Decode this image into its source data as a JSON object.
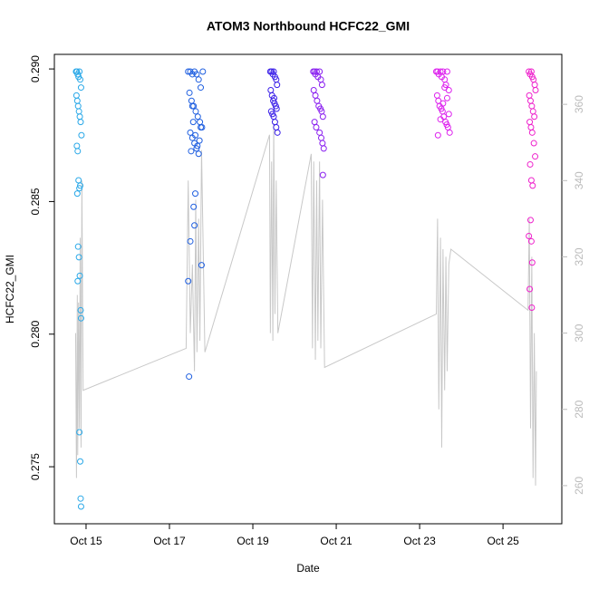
{
  "chart_data": {
    "type": "scatter",
    "title": "ATOM3 Northbound HCFC22_GMI",
    "xlabel": "Date",
    "ylabel": "HCFC22_GMI",
    "xlim": [
      14.24,
      26.41
    ],
    "xticks": [
      {
        "value": 15,
        "label": "Oct 15"
      },
      {
        "value": 17,
        "label": "Oct 17"
      },
      {
        "value": 19,
        "label": "Oct 19"
      },
      {
        "value": 21,
        "label": "Oct 21"
      },
      {
        "value": 23,
        "label": "Oct 23"
      },
      {
        "value": 25,
        "label": "Oct 25"
      }
    ],
    "ylim": [
      0.27285,
      0.29055
    ],
    "yticks": [
      0.275,
      {
        "value": 0.28,
        "label": "0.280"
      },
      0.285,
      {
        "value": 0.29,
        "label": "0.290"
      }
    ],
    "y2lim": [
      250,
      373.1
    ],
    "y2ticks": [
      260,
      280,
      300,
      320,
      340,
      360
    ],
    "y2color": "#bbbbbb",
    "series": [
      {
        "style": "line",
        "axis": "y2",
        "color": "#c8c8c8",
        "x": [
          14.75,
          14.77,
          14.79,
          14.8,
          14.82,
          14.84,
          14.86,
          14.88,
          14.9,
          14.93,
          17.4,
          17.45,
          17.5,
          17.55,
          17.6,
          17.63,
          17.66,
          17.7,
          17.73,
          17.77,
          17.85,
          19.4,
          19.42,
          19.45,
          19.48,
          19.5,
          19.53,
          19.56,
          19.6,
          20.4,
          20.43,
          20.46,
          20.5,
          20.53,
          20.56,
          20.6,
          20.63,
          20.67,
          20.72,
          23.4,
          23.43,
          23.46,
          23.5,
          23.53,
          23.56,
          23.6,
          23.63,
          23.66,
          23.7,
          23.75,
          25.6,
          25.63,
          25.66,
          25.69,
          25.72,
          25.75,
          25.78,
          25.8
        ],
        "values": [
          300,
          262,
          310,
          268,
          308,
          275,
          325,
          270,
          340,
          285,
          296,
          340,
          300,
          318,
          290,
          335,
          295,
          330,
          298,
          348,
          295,
          352,
          300,
          345,
          298,
          355,
          305,
          340,
          300,
          347,
          296,
          345,
          293,
          340,
          298,
          345,
          296,
          335,
          291,
          305,
          330,
          280,
          325,
          270,
          322,
          285,
          320,
          290,
          318,
          322,
          306,
          330,
          275,
          320,
          262,
          300,
          260,
          290
        ]
      },
      {
        "style": "points",
        "color": "#29a8e8",
        "x": [
          14.76,
          14.78,
          14.8,
          14.82,
          14.84,
          14.86,
          14.88,
          14.77,
          14.79,
          14.81,
          14.83,
          14.85,
          14.87,
          14.89,
          14.78,
          14.8,
          14.82,
          14.84,
          14.86,
          14.79,
          14.81,
          14.83,
          14.85,
          14.87,
          14.88,
          14.8,
          14.84,
          14.86,
          14.87,
          14.88
        ],
        "values": [
          0.2899,
          0.2899,
          0.2898,
          0.2897,
          0.2899,
          0.2896,
          0.2893,
          0.289,
          0.2888,
          0.2886,
          0.2884,
          0.2882,
          0.288,
          0.2875,
          0.2871,
          0.2869,
          0.2858,
          0.2855,
          0.2856,
          0.2853,
          0.2833,
          0.2829,
          0.2822,
          0.2809,
          0.2806,
          0.282,
          0.2763,
          0.2752,
          0.2738,
          0.2735
        ]
      },
      {
        "style": "points",
        "color": "#1f5fe0",
        "x": [
          17.45,
          17.5,
          17.55,
          17.6,
          17.65,
          17.7,
          17.75,
          17.8,
          17.48,
          17.53,
          17.58,
          17.63,
          17.68,
          17.73,
          17.78,
          17.5,
          17.55,
          17.6,
          17.65,
          17.7,
          17.75,
          17.52,
          17.57,
          17.62,
          17.67,
          17.72,
          17.77,
          17.45,
          17.47,
          17.5,
          17.6,
          17.62,
          17.58,
          17.55
        ],
        "values": [
          0.2899,
          0.2899,
          0.2898,
          0.2899,
          0.2898,
          0.2896,
          0.2893,
          0.2899,
          0.2891,
          0.2888,
          0.2886,
          0.2884,
          0.2882,
          0.288,
          0.2878,
          0.2876,
          0.2874,
          0.2872,
          0.287,
          0.2868,
          0.2878,
          0.2869,
          0.288,
          0.2875,
          0.2871,
          0.2873,
          0.2826,
          0.282,
          0.2784,
          0.2835,
          0.2841,
          0.2853,
          0.2848,
          0.2886
        ]
      },
      {
        "style": "points",
        "color": "#3a1fe8",
        "x": [
          19.42,
          19.45,
          19.48,
          19.5,
          19.53,
          19.56,
          19.58,
          19.43,
          19.46,
          19.49,
          19.52,
          19.55,
          19.57,
          19.44,
          19.47,
          19.5,
          19.53,
          19.56,
          19.59,
          19.51
        ],
        "values": [
          0.2899,
          0.2899,
          0.2898,
          0.2899,
          0.2897,
          0.2896,
          0.2894,
          0.2892,
          0.289,
          0.2888,
          0.2887,
          0.2886,
          0.2885,
          0.2884,
          0.2883,
          0.2882,
          0.288,
          0.2878,
          0.2876,
          0.2889
        ]
      },
      {
        "style": "points",
        "color": "#8a1ff0",
        "x": [
          20.45,
          20.48,
          20.5,
          20.53,
          20.56,
          20.6,
          20.63,
          20.66,
          20.46,
          20.5,
          20.54,
          20.58,
          20.62,
          20.65,
          20.68,
          20.48,
          20.52,
          20.6,
          20.64,
          20.67,
          20.7,
          20.68
        ],
        "values": [
          0.2899,
          0.2899,
          0.2898,
          0.2899,
          0.2897,
          0.2899,
          0.2896,
          0.2894,
          0.2892,
          0.289,
          0.2888,
          0.2886,
          0.2885,
          0.2884,
          0.2882,
          0.288,
          0.2878,
          0.2876,
          0.2874,
          0.2872,
          0.287,
          0.286
        ]
      },
      {
        "style": "points",
        "color": "#dd22ee",
        "x": [
          23.4,
          23.43,
          23.46,
          23.5,
          23.53,
          23.56,
          23.6,
          23.63,
          23.66,
          23.7,
          23.42,
          23.45,
          23.48,
          23.52,
          23.55,
          23.58,
          23.62,
          23.65,
          23.68,
          23.72,
          23.44,
          23.5,
          23.56,
          23.6,
          23.66,
          23.7
        ],
        "values": [
          0.2899,
          0.2899,
          0.2898,
          0.2899,
          0.2897,
          0.2899,
          0.2896,
          0.2894,
          0.2899,
          0.2892,
          0.289,
          0.2888,
          0.2886,
          0.2885,
          0.2884,
          0.2882,
          0.288,
          0.2879,
          0.2878,
          0.2876,
          0.2875,
          0.2881,
          0.2887,
          0.2893,
          0.2889,
          0.2883
        ]
      },
      {
        "style": "points",
        "color": "#ee22cc",
        "x": [
          25.62,
          25.65,
          25.68,
          25.7,
          25.73,
          25.76,
          25.78,
          25.63,
          25.66,
          25.69,
          25.72,
          25.75,
          25.64,
          25.67,
          25.7,
          25.74,
          25.77,
          25.65,
          25.68,
          25.71,
          25.62,
          25.66,
          25.68,
          25.7,
          25.64,
          25.69
        ],
        "values": [
          0.2899,
          0.2898,
          0.2899,
          0.2897,
          0.2896,
          0.2894,
          0.2892,
          0.289,
          0.2888,
          0.2886,
          0.2884,
          0.2882,
          0.288,
          0.2878,
          0.2876,
          0.2872,
          0.2867,
          0.2864,
          0.2858,
          0.2856,
          0.2837,
          0.2843,
          0.2835,
          0.2827,
          0.2817,
          0.281
        ]
      }
    ]
  }
}
